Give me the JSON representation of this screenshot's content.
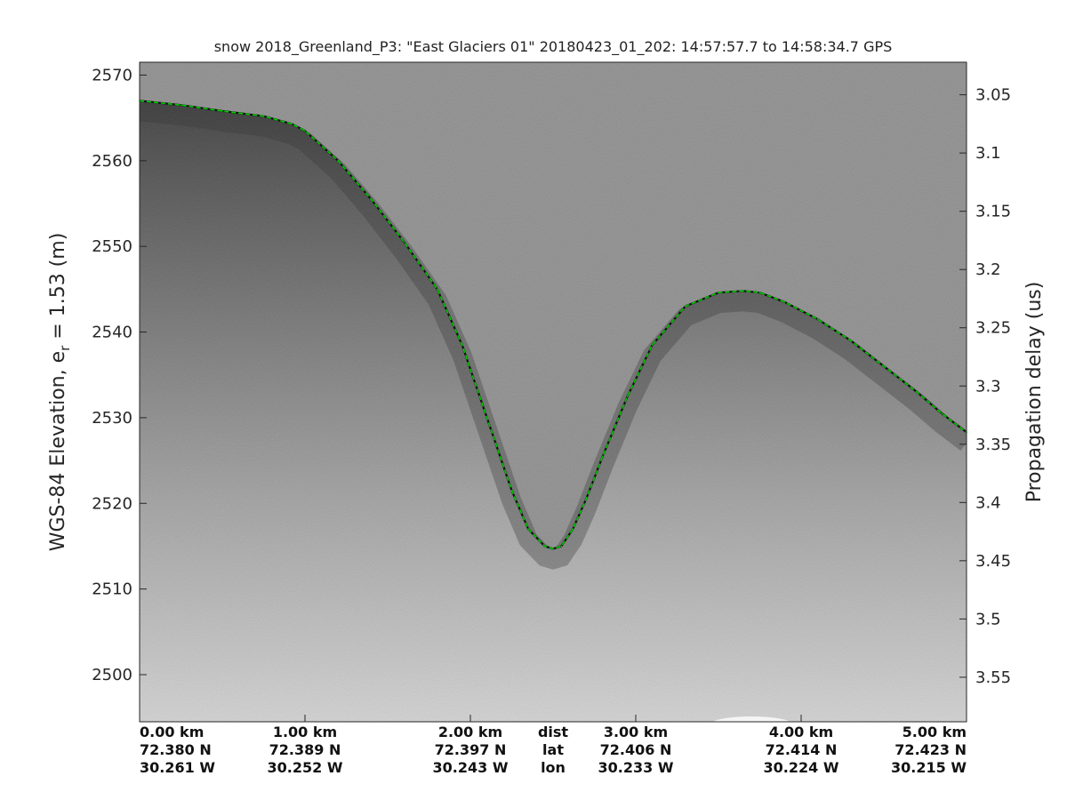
{
  "chart_data": {
    "type": "line",
    "title": "snow 2018_Greenland_P3: \"East Glaciers 01\"  20180423_01_202: 14:57:57.7 to 14:58:34.7 GPS",
    "ylabel_main": "WGS-84 Elevation, e",
    "ylabel_sub": "r",
    "ylabel_tail": " = 1.53 (m)",
    "ylabel_right": "Propagation delay (us)",
    "xlim": [
      0,
      5.0
    ],
    "ylim": [
      2494.5,
      2571.5
    ],
    "grid": false,
    "yticks": [
      2500,
      2510,
      2520,
      2530,
      2540,
      2550,
      2560,
      2570
    ],
    "right_ticks": [
      {
        "label": "3.05",
        "elev": 2567.7
      },
      {
        "label": "3.1",
        "elev": 2560.9
      },
      {
        "label": "3.15",
        "elev": 2554.1
      },
      {
        "label": "3.2",
        "elev": 2547.3
      },
      {
        "label": "3.25",
        "elev": 2540.5
      },
      {
        "label": "3.3",
        "elev": 2533.7
      },
      {
        "label": "3.35",
        "elev": 2526.9
      },
      {
        "label": "3.4",
        "elev": 2520.1
      },
      {
        "label": "3.45",
        "elev": 2513.3
      },
      {
        "label": "3.5",
        "elev": 2506.5
      },
      {
        "label": "3.55",
        "elev": 2499.7
      }
    ],
    "x_columns": [
      {
        "x": 0.0,
        "dist": "0.00 km",
        "lat": "72.380 N",
        "lon": "30.261 W",
        "align": "start"
      },
      {
        "x": 1.0,
        "dist": "1.00 km",
        "lat": "72.389 N",
        "lon": "30.252 W",
        "align": "middle"
      },
      {
        "x": 2.0,
        "dist": "2.00 km",
        "lat": "72.397 N",
        "lon": "30.243 W",
        "align": "middle"
      },
      {
        "x": 2.5,
        "dist": "dist",
        "lat": "lat",
        "lon": "lon",
        "align": "middle"
      },
      {
        "x": 3.0,
        "dist": "3.00 km",
        "lat": "72.406 N",
        "lon": "30.233 W",
        "align": "middle"
      },
      {
        "x": 4.0,
        "dist": "4.00 km",
        "lat": "72.414 N",
        "lon": "30.224 W",
        "align": "middle"
      },
      {
        "x": 5.0,
        "dist": "5.00 km",
        "lat": "72.423 N",
        "lon": "30.215 W",
        "align": "end"
      }
    ],
    "series": [
      {
        "line_color": "#00cc00",
        "x": [
          0.0,
          0.25,
          0.5,
          0.75,
          0.92,
          1.0,
          1.2,
          1.4,
          1.6,
          1.8,
          1.95,
          2.1,
          2.25,
          2.35,
          2.45,
          2.5,
          2.55,
          2.62,
          2.7,
          2.8,
          2.95,
          3.1,
          3.3,
          3.5,
          3.65,
          3.75,
          3.9,
          4.1,
          4.3,
          4.5,
          4.7,
          4.85,
          5.0
        ],
        "y": [
          2567.0,
          2566.5,
          2565.8,
          2565.2,
          2564.3,
          2563.5,
          2560.0,
          2555.5,
          2550.5,
          2545.0,
          2538.5,
          2530.0,
          2521.5,
          2517.0,
          2515.0,
          2514.7,
          2515.0,
          2517.0,
          2520.5,
          2525.5,
          2532.5,
          2538.5,
          2543.0,
          2544.6,
          2544.8,
          2544.6,
          2543.5,
          2541.5,
          2539.0,
          2536.0,
          2533.0,
          2530.5,
          2528.3
        ]
      }
    ],
    "image_colors": {
      "air": "#8b8b8b",
      "near_surface": "#3a3a3a",
      "deep": "#c9c9c9",
      "surface_line": "#00cc00"
    }
  }
}
